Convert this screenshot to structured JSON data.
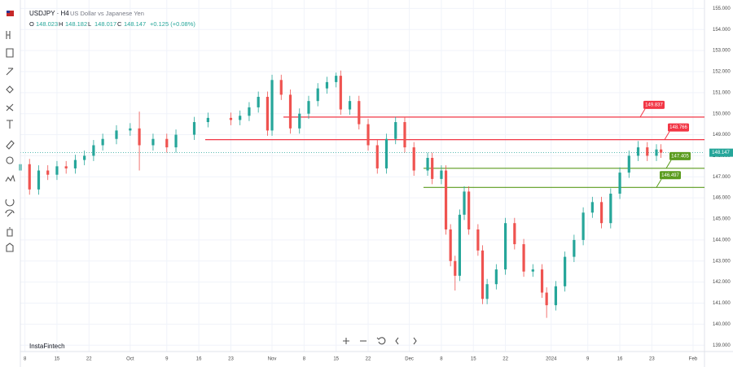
{
  "header": {
    "symbol": "USDJPY · H4",
    "description": "US Dollar vs Japanese Yen",
    "ohlc": [
      {
        "key": "O",
        "value": "148.023"
      },
      {
        "key": "H",
        "value": "148.182"
      },
      {
        "key": "L",
        "value": "148.017"
      },
      {
        "key": "C",
        "value": "148.147"
      }
    ],
    "change": "+0.125 (+0.08%)"
  },
  "watermark": "InstaFintech",
  "chart_data": {
    "type": "candlestick",
    "up_color": "#26a69a",
    "down_color": "#ef5350",
    "grid": true,
    "x": [
      6,
      8,
      10,
      12,
      14,
      16,
      18,
      20,
      22,
      24,
      27,
      30,
      32,
      35,
      38,
      40,
      44,
      47,
      52,
      54,
      56,
      58,
      60,
      61,
      63,
      65,
      67,
      69,
      71,
      73,
      75,
      76,
      78,
      80,
      82,
      84,
      86,
      88,
      90,
      92,
      95,
      96,
      98,
      99,
      100,
      101,
      102,
      103,
      104,
      106,
      107,
      108,
      110,
      112,
      114,
      116,
      118,
      120,
      121,
      123,
      125,
      127,
      129,
      131,
      133,
      135,
      137,
      139,
      141,
      143,
      145,
      146
    ],
    "open": [
      147.3,
      147.6,
      146.4,
      147.3,
      147.1,
      147.5,
      147.4,
      147.8,
      148.0,
      148.5,
      148.8,
      149.2,
      149.3,
      148.5,
      148.8,
      148.4,
      149.0,
      149.6,
      149.8,
      149.7,
      149.9,
      150.3,
      150.8,
      149.2,
      151.6,
      150.9,
      149.3,
      150.0,
      150.6,
      151.2,
      151.5,
      151.8,
      150.2,
      150.6,
      149.5,
      148.5,
      147.4,
      148.8,
      149.6,
      148.4,
      147.3,
      147.9,
      146.9,
      147.3,
      144.5,
      143.0,
      142.3,
      145.2,
      146.3,
      144.5,
      143.5,
      141.2,
      141.9,
      142.6,
      144.8,
      143.8,
      142.5,
      142.6,
      141.5,
      140.9,
      141.8,
      143.2,
      144.0,
      145.3,
      145.8,
      144.8,
      146.2,
      147.2,
      148.0,
      148.4,
      148.0,
      148.3
    ],
    "high": [
      147.85,
      147.85,
      147.55,
      147.55,
      147.75,
      147.75,
      148.05,
      148.25,
      148.75,
      149.05,
      149.45,
      149.55,
      150.1,
      149.05,
      149.05,
      149.25,
      149.85,
      150.05,
      150.05,
      150.15,
      150.55,
      151.05,
      151.05,
      151.85,
      151.85,
      151.15,
      150.25,
      150.85,
      151.45,
      151.75,
      151.95,
      152.05,
      150.85,
      150.85,
      149.75,
      148.75,
      149.05,
      149.85,
      149.85,
      148.65,
      148.15,
      148.15,
      147.55,
      147.55,
      144.75,
      143.25,
      145.45,
      146.55,
      146.55,
      144.75,
      143.75,
      142.15,
      142.85,
      145.05,
      145.05,
      144.05,
      142.85,
      142.85,
      141.75,
      142.05,
      143.45,
      144.25,
      145.55,
      146.05,
      146.05,
      146.45,
      147.45,
      148.25,
      148.7,
      148.65,
      148.55,
      148.55
    ],
    "low": [
      147.05,
      146.15,
      146.15,
      146.85,
      146.85,
      147.15,
      147.15,
      147.55,
      147.75,
      148.25,
      148.55,
      148.95,
      147.3,
      148.25,
      148.15,
      148.15,
      148.75,
      149.35,
      149.45,
      149.45,
      149.65,
      150.05,
      148.95,
      148.95,
      150.65,
      149.05,
      149.05,
      149.75,
      150.35,
      150.95,
      151.25,
      149.95,
      149.95,
      149.25,
      148.25,
      147.15,
      147.15,
      148.55,
      148.15,
      147.05,
      147.05,
      146.65,
      146.65,
      144.25,
      142.75,
      141.6,
      142.05,
      144.95,
      144.25,
      143.25,
      140.95,
      140.95,
      141.65,
      142.35,
      143.55,
      142.25,
      142.25,
      141.25,
      140.3,
      140.65,
      141.55,
      142.95,
      143.75,
      145.05,
      144.55,
      144.55,
      145.95,
      146.95,
      147.75,
      147.75,
      147.75,
      147.9
    ],
    "close": [
      147.6,
      146.4,
      147.3,
      147.1,
      147.5,
      147.4,
      147.8,
      148.0,
      148.5,
      148.8,
      149.2,
      149.3,
      148.5,
      148.8,
      148.4,
      149.0,
      149.6,
      149.8,
      149.7,
      149.9,
      150.3,
      150.8,
      149.2,
      151.6,
      150.9,
      149.3,
      150.0,
      150.6,
      151.2,
      151.5,
      151.8,
      150.2,
      150.6,
      149.5,
      148.5,
      147.4,
      148.8,
      149.6,
      148.4,
      147.3,
      147.9,
      146.9,
      147.3,
      144.5,
      143.0,
      142.3,
      145.2,
      146.3,
      144.5,
      143.5,
      141.2,
      141.9,
      142.6,
      144.8,
      143.8,
      142.5,
      142.6,
      141.5,
      140.9,
      141.8,
      143.2,
      144.0,
      145.3,
      145.8,
      144.8,
      146.2,
      147.2,
      148.0,
      148.4,
      148.0,
      148.3,
      148.147
    ],
    "xlim": [
      6,
      155.5
    ],
    "ylim": [
      138.7,
      155.4
    ],
    "xticks": [
      {
        "value": 7,
        "label": "8"
      },
      {
        "value": 14,
        "label": "15"
      },
      {
        "value": 21,
        "label": "22"
      },
      {
        "value": 30,
        "label": "Oct"
      },
      {
        "value": 38,
        "label": "9"
      },
      {
        "value": 45,
        "label": "16"
      },
      {
        "value": 52,
        "label": "23"
      },
      {
        "value": 61,
        "label": "Nov"
      },
      {
        "value": 68,
        "label": "8"
      },
      {
        "value": 75,
        "label": "15"
      },
      {
        "value": 82,
        "label": "22"
      },
      {
        "value": 91,
        "label": "Dec"
      },
      {
        "value": 98,
        "label": "8"
      },
      {
        "value": 105,
        "label": "15"
      },
      {
        "value": 112,
        "label": "22"
      },
      {
        "value": 122,
        "label": "2024"
      },
      {
        "value": 130,
        "label": "9"
      },
      {
        "value": 137,
        "label": "16"
      },
      {
        "value": 144,
        "label": "23"
      },
      {
        "value": 153,
        "label": "Feb"
      }
    ],
    "yticks": [
      {
        "value": 155,
        "label": "155.000"
      },
      {
        "value": 154,
        "label": "154.000"
      },
      {
        "value": 153,
        "label": "153.000"
      },
      {
        "value": 152,
        "label": "152.000"
      },
      {
        "value": 151,
        "label": "151.000"
      },
      {
        "value": 150,
        "label": "150.000"
      },
      {
        "value": 149,
        "label": "149.000"
      },
      {
        "value": 148,
        "label": "148.000"
      },
      {
        "value": 147,
        "label": "147.000"
      },
      {
        "value": 146,
        "label": "146.000"
      },
      {
        "value": 145,
        "label": "145.000"
      },
      {
        "value": 144,
        "label": "144.000"
      },
      {
        "value": 143,
        "label": "143.000"
      },
      {
        "value": 142,
        "label": "142.000"
      },
      {
        "value": 141,
        "label": "141.000"
      },
      {
        "value": 140,
        "label": "140.000"
      },
      {
        "value": 139,
        "label": "139.000"
      }
    ],
    "levels": [
      {
        "value": 149.837,
        "color": "#f23645"
      },
      {
        "value": 148.766,
        "color": "#f23645"
      },
      {
        "value": 147.405,
        "color": "#5b9c1f"
      },
      {
        "value": 146.497,
        "color": "#5b9c1f"
      }
    ],
    "last_price": 148.147,
    "last_price_color": "#26a69a"
  }
}
